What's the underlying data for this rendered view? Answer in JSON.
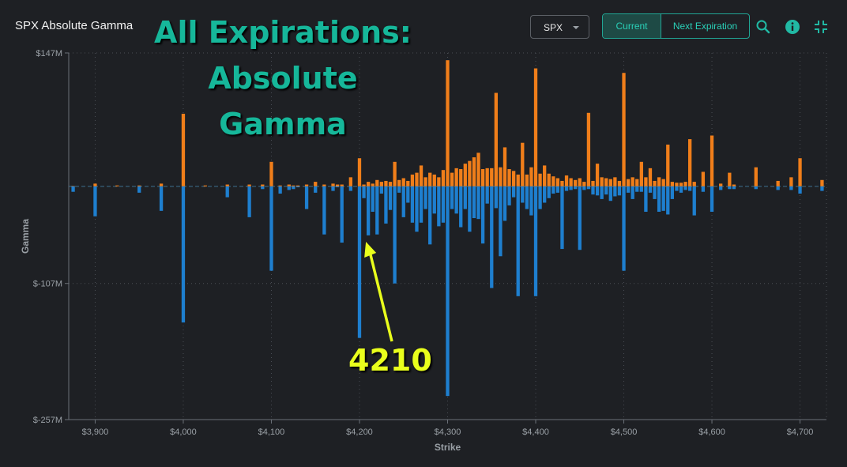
{
  "header": {
    "title": "SPX Absolute Gamma",
    "overlay_line1": "All Expirations:",
    "overlay_line2": "Absolute Gamma",
    "ticker_select": "SPX",
    "toggle_current": "Current",
    "toggle_next": "Next Expiration"
  },
  "icons": [
    "search-icon",
    "info-icon",
    "collapse-icon"
  ],
  "colors": {
    "positive": "#f07e1a",
    "negative": "#1e7fcf",
    "accent": "#21a594",
    "annotation": "#e9ff1c"
  },
  "annotation": {
    "label": "4210",
    "strike": 4210
  },
  "chart_data": {
    "type": "bar",
    "xlabel": "Strike",
    "ylabel": "Gamma",
    "xlim": [
      3870,
      4730
    ],
    "ylim": [
      -257,
      147
    ],
    "y_ticks": [
      147,
      -107,
      -257
    ],
    "y_tick_labels": [
      "$147M",
      "$-107M",
      "$-257M"
    ],
    "x_ticks": [
      3900,
      4000,
      4100,
      4200,
      4300,
      4400,
      4500,
      4600,
      4700
    ],
    "x_tick_labels": [
      "$3,900",
      "$4,000",
      "$4,100",
      "$4,200",
      "$4,300",
      "$4,400",
      "$4,500",
      "$4,600",
      "$4,700"
    ],
    "grid": true,
    "series": [
      {
        "strikes": [
          3875,
          3900,
          3925,
          3950,
          3975,
          4000,
          4025,
          4050,
          4075,
          4090,
          4100,
          4110,
          4120,
          4125,
          4130,
          4140,
          4150,
          4160,
          4170,
          4175,
          4180,
          4190,
          4200,
          4205,
          4210,
          4215,
          4220,
          4225,
          4230,
          4235,
          4240,
          4245,
          4250,
          4255,
          4260,
          4265,
          4270,
          4275,
          4280,
          4285,
          4290,
          4295,
          4300,
          4305,
          4310,
          4315,
          4320,
          4325,
          4330,
          4335,
          4340,
          4345,
          4350,
          4355,
          4360,
          4365,
          4370,
          4375,
          4380,
          4385,
          4390,
          4395,
          4400,
          4405,
          4410,
          4415,
          4420,
          4425,
          4430,
          4435,
          4440,
          4445,
          4450,
          4455,
          4460,
          4465,
          4470,
          4475,
          4480,
          4485,
          4490,
          4495,
          4500,
          4505,
          4510,
          4515,
          4520,
          4525,
          4530,
          4535,
          4540,
          4545,
          4550,
          4555,
          4560,
          4565,
          4570,
          4575,
          4580,
          4590,
          4600,
          4610,
          4620,
          4625,
          4650,
          4675,
          4690,
          4700,
          4725
        ],
        "positive": [
          0.5,
          3,
          1,
          1,
          3,
          80,
          1,
          2,
          2,
          2,
          27,
          1,
          2,
          1,
          1,
          2,
          5,
          2,
          3,
          2,
          2,
          10,
          31,
          2,
          5,
          3,
          7,
          5,
          6,
          5,
          27,
          7,
          9,
          6,
          13,
          15,
          23,
          10,
          15,
          13,
          10,
          18,
          139,
          15,
          20,
          19,
          25,
          28,
          32,
          37,
          19,
          20,
          20,
          103,
          21,
          43,
          19,
          17,
          13,
          48,
          13,
          21,
          130,
          14,
          23,
          14,
          11,
          9,
          6,
          12,
          9,
          7,
          9,
          5,
          81,
          6,
          25,
          10,
          9,
          8,
          10,
          6,
          125,
          8,
          10,
          8,
          27,
          10,
          20,
          6,
          10,
          8,
          46,
          5,
          4,
          4,
          5,
          52,
          5,
          16,
          56,
          3,
          15,
          2,
          21,
          6,
          10,
          31,
          7
        ],
        "negative": [
          -6,
          -33,
          0,
          -7,
          -27,
          -150,
          0,
          -12,
          -34,
          -3,
          -93,
          -8,
          -4,
          -3,
          -1,
          -25,
          -7,
          -53,
          -5,
          -1,
          -62,
          -5,
          -167,
          -13,
          -54,
          -28,
          -53,
          -8,
          -41,
          -26,
          -107,
          -7,
          -34,
          -18,
          -40,
          -50,
          -40,
          -25,
          -64,
          -30,
          -44,
          -40,
          -231,
          -25,
          -30,
          -45,
          -25,
          -50,
          -35,
          -36,
          -63,
          -19,
          -112,
          -24,
          -77,
          -38,
          -21,
          -12,
          -121,
          -18,
          -25,
          -32,
          -121,
          -25,
          -18,
          -13,
          -8,
          -7,
          -69,
          -5,
          -4,
          -3,
          -70,
          -4,
          -3,
          -9,
          -10,
          -14,
          -9,
          -16,
          -11,
          -10,
          -93,
          -7,
          -14,
          -6,
          -6,
          -28,
          -7,
          -14,
          -28,
          -27,
          -31,
          -14,
          -5,
          -7,
          -4,
          -5,
          -32,
          -6,
          -28,
          -4,
          -3,
          -3,
          -3,
          -4,
          -4,
          -8,
          -5
        ]
      }
    ]
  }
}
